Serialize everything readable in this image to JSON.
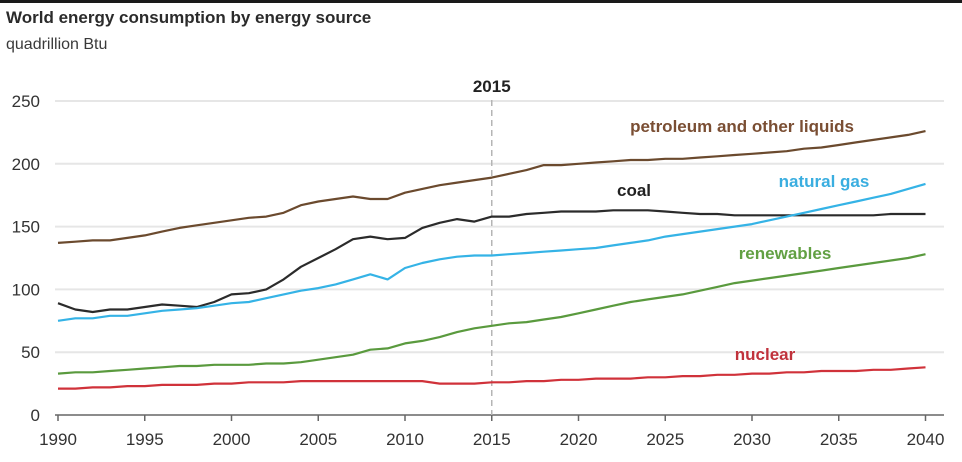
{
  "chart_data": {
    "type": "line",
    "title": "World energy consumption by energy source",
    "subtitle": "quadrillion Btu",
    "xlabel": "",
    "ylabel": "quadrillion Btu",
    "xlim": [
      1990,
      2040
    ],
    "ylim": [
      0,
      250
    ],
    "grid": true,
    "legend": "inline-labels",
    "x_ticks": [
      1990,
      1995,
      2000,
      2005,
      2010,
      2015,
      2020,
      2025,
      2030,
      2035,
      2040
    ],
    "y_ticks": [
      0,
      50,
      100,
      150,
      200,
      250
    ],
    "annotations": [
      {
        "x": 2015,
        "label": "2015",
        "style": "dashed-vertical-line"
      }
    ],
    "x": [
      1990,
      1991,
      1992,
      1993,
      1994,
      1995,
      1996,
      1997,
      1998,
      1999,
      2000,
      2001,
      2002,
      2003,
      2004,
      2005,
      2006,
      2007,
      2008,
      2009,
      2010,
      2011,
      2012,
      2013,
      2014,
      2015,
      2016,
      2017,
      2018,
      2019,
      2020,
      2021,
      2022,
      2023,
      2024,
      2025,
      2026,
      2027,
      2028,
      2029,
      2030,
      2031,
      2032,
      2033,
      2034,
      2035,
      2036,
      2037,
      2038,
      2039,
      2040
    ],
    "series": [
      {
        "name": "petroleum and other liquids",
        "color": "#6b4a2e",
        "label_color": "#7a4e33",
        "values": [
          137,
          138,
          139,
          139,
          141,
          143,
          146,
          149,
          151,
          153,
          155,
          157,
          158,
          161,
          167,
          170,
          172,
          174,
          172,
          172,
          177,
          180,
          183,
          185,
          187,
          189,
          192,
          195,
          199,
          199,
          200,
          201,
          202,
          203,
          203,
          204,
          204,
          205,
          206,
          207,
          208,
          209,
          210,
          212,
          213,
          215,
          217,
          219,
          221,
          223,
          226
        ]
      },
      {
        "name": "coal",
        "color": "#2b2b2b",
        "label_color": "#222222",
        "values": [
          89,
          84,
          82,
          84,
          84,
          86,
          88,
          87,
          86,
          90,
          96,
          97,
          100,
          108,
          118,
          125,
          132,
          140,
          142,
          140,
          141,
          149,
          153,
          156,
          154,
          158,
          158,
          160,
          161,
          162,
          162,
          162,
          163,
          163,
          163,
          162,
          161,
          160,
          160,
          159,
          159,
          159,
          159,
          159,
          159,
          159,
          159,
          159,
          160,
          160,
          160
        ]
      },
      {
        "name": "natural gas",
        "color": "#35b3e6",
        "label_color": "#3aaee0",
        "values": [
          75,
          77,
          77,
          79,
          79,
          81,
          83,
          84,
          85,
          87,
          89,
          90,
          93,
          96,
          99,
          101,
          104,
          108,
          112,
          108,
          117,
          121,
          124,
          126,
          127,
          127,
          128,
          129,
          130,
          131,
          132,
          133,
          135,
          137,
          139,
          142,
          144,
          146,
          148,
          150,
          152,
          155,
          158,
          161,
          164,
          167,
          170,
          173,
          176,
          180,
          184
        ]
      },
      {
        "name": "renewables",
        "color": "#5a9a3e",
        "label_color": "#62a043",
        "values": [
          33,
          34,
          34,
          35,
          36,
          37,
          38,
          39,
          39,
          40,
          40,
          40,
          41,
          41,
          42,
          44,
          46,
          48,
          52,
          53,
          57,
          59,
          62,
          66,
          69,
          71,
          73,
          74,
          76,
          78,
          81,
          84,
          87,
          90,
          92,
          94,
          96,
          99,
          102,
          105,
          107,
          109,
          111,
          113,
          115,
          117,
          119,
          121,
          123,
          125,
          128
        ]
      },
      {
        "name": "nuclear",
        "color": "#d0323a",
        "label_color": "#c0323c",
        "values": [
          21,
          21,
          22,
          22,
          23,
          23,
          24,
          24,
          24,
          25,
          25,
          26,
          26,
          26,
          27,
          27,
          27,
          27,
          27,
          27,
          27,
          27,
          25,
          25,
          25,
          26,
          26,
          27,
          27,
          28,
          28,
          29,
          29,
          29,
          30,
          30,
          31,
          31,
          32,
          32,
          33,
          33,
          34,
          34,
          35,
          35,
          35,
          36,
          36,
          37,
          38
        ]
      }
    ]
  }
}
